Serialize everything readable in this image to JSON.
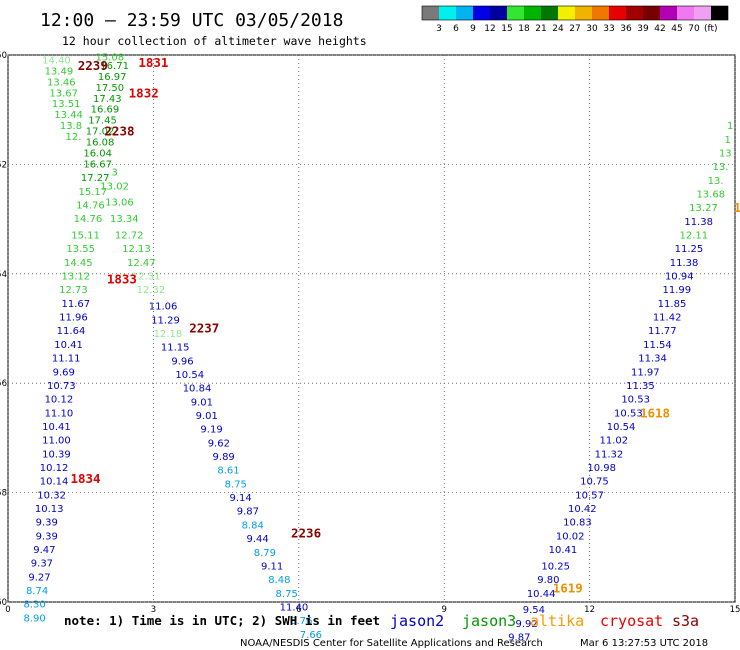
{
  "title": "12:00 – 23:59 UTC 03/05/2018",
  "subtitle": "12 hour collection of altimeter wave heights",
  "units": "(ft)",
  "colorbar": {
    "colors": [
      "#7a7a7a",
      "#00f0f0",
      "#00b4f0",
      "#0000e6",
      "#0000a0",
      "#32e632",
      "#00b400",
      "#007800",
      "#f0f000",
      "#f0b400",
      "#f07800",
      "#e60000",
      "#a00000",
      "#780000",
      "#b400b4",
      "#f078f0",
      "#f0a0f0",
      "#000000"
    ],
    "labels": [
      "3",
      "6",
      "9",
      "12",
      "15",
      "18",
      "21",
      "24",
      "27",
      "30",
      "33",
      "36",
      "39",
      "42",
      "45",
      "70"
    ]
  },
  "note": "note: 1) Time is in UTC; 2) SWH is in feet",
  "legend": [
    {
      "name": "jason2",
      "color": "#0000cc"
    },
    {
      "name": "jason3",
      "color": "#009900"
    },
    {
      "name": "altika",
      "color": "#ff9900"
    },
    {
      "name": "cryosat",
      "color": "#ee0000"
    },
    {
      "name": "s3a",
      "color": "#880000"
    }
  ],
  "footer": {
    "agency": "NOAA/NESDIS Center for Satellite Applications and Research",
    "timestamp": "Mar  6 13:27:53 UTC 2018"
  },
  "chart_data": {
    "type": "scatter",
    "x_ticks": [
      "0",
      "3",
      "6",
      "9",
      "12",
      "15"
    ],
    "y_ticks": [
      "-50",
      "-52",
      "-54",
      "-56",
      "-58",
      "-60"
    ],
    "xlim": [
      0,
      15
    ],
    "ylim": [
      -60,
      -50
    ],
    "grid": true,
    "passes": [
      {
        "label": "2239",
        "x": 1.75,
        "y": -50.2,
        "color": "#8b0000"
      },
      {
        "label": "1831",
        "x": 3.0,
        "y": -50.15,
        "color": "#e00000"
      },
      {
        "label": "1832",
        "x": 2.8,
        "y": -50.7,
        "color": "#e00000"
      },
      {
        "label": "2238",
        "x": 2.3,
        "y": -51.4,
        "color": "#8b0000"
      },
      {
        "label": "1833",
        "x": 2.35,
        "y": -54.1,
        "color": "#e00000"
      },
      {
        "label": "2237",
        "x": 4.05,
        "y": -55.0,
        "color": "#8b0000"
      },
      {
        "label": "1834",
        "x": 1.6,
        "y": -57.75,
        "color": "#e00000"
      },
      {
        "label": "2236",
        "x": 6.15,
        "y": -58.75,
        "color": "#8b0000"
      },
      {
        "label": "1618",
        "x": 13.35,
        "y": -56.55,
        "color": "#f09000"
      },
      {
        "label": "1619",
        "x": 11.55,
        "y": -59.75,
        "color": "#f09000"
      },
      {
        "label": "1",
        "x": 15.05,
        "y": -52.8,
        "color": "#f09000"
      }
    ],
    "points": [
      {
        "x": 1.0,
        "y": -50.1,
        "v": "14.40",
        "c": "#90e890"
      },
      {
        "x": 1.05,
        "y": -50.3,
        "v": "13.49",
        "c": "#32cd32"
      },
      {
        "x": 1.1,
        "y": -50.5,
        "v": "13.46",
        "c": "#32cd32"
      },
      {
        "x": 1.15,
        "y": -50.7,
        "v": "13.67",
        "c": "#32cd32"
      },
      {
        "x": 1.2,
        "y": -50.9,
        "v": "13.51",
        "c": "#32cd32"
      },
      {
        "x": 1.25,
        "y": -51.1,
        "v": "13.44",
        "c": "#32cd32"
      },
      {
        "x": 1.3,
        "y": -51.3,
        "v": "13.8",
        "c": "#32cd32"
      },
      {
        "x": 1.35,
        "y": -51.5,
        "v": "12.",
        "c": "#32cd32"
      },
      {
        "x": 2.1,
        "y": -50.05,
        "v": "15.08",
        "c": "#32cd32"
      },
      {
        "x": 2.2,
        "y": -50.2,
        "v": "16.71",
        "c": "#009900"
      },
      {
        "x": 2.15,
        "y": -50.4,
        "v": "16.97",
        "c": "#009900"
      },
      {
        "x": 2.1,
        "y": -50.6,
        "v": "17.50",
        "c": "#009900"
      },
      {
        "x": 2.05,
        "y": -50.8,
        "v": "17.43",
        "c": "#009900"
      },
      {
        "x": 2.0,
        "y": -51.0,
        "v": "16.69",
        "c": "#009900"
      },
      {
        "x": 1.95,
        "y": -51.2,
        "v": "17.45",
        "c": "#009900"
      },
      {
        "x": 1.9,
        "y": -51.4,
        "v": "17.02",
        "c": "#009900"
      },
      {
        "x": 1.9,
        "y": -51.6,
        "v": "16.08",
        "c": "#009900"
      },
      {
        "x": 1.85,
        "y": -51.8,
        "v": "16.04",
        "c": "#009900"
      },
      {
        "x": 1.85,
        "y": -52.0,
        "v": "16.67",
        "c": "#009900"
      },
      {
        "x": 1.8,
        "y": -52.25,
        "v": "17.27",
        "c": "#009900"
      },
      {
        "x": 1.75,
        "y": -52.5,
        "v": "15.17",
        "c": "#32cd32"
      },
      {
        "x": 1.7,
        "y": -52.75,
        "v": "14.76",
        "c": "#32cd32"
      },
      {
        "x": 1.65,
        "y": -53.0,
        "v": "14.76",
        "c": "#32cd32"
      },
      {
        "x": 1.6,
        "y": -53.3,
        "v": "15.11",
        "c": "#32cd32"
      },
      {
        "x": 1.5,
        "y": -53.55,
        "v": "13.55",
        "c": "#32cd32"
      },
      {
        "x": 1.45,
        "y": -53.8,
        "v": "14.45",
        "c": "#32cd32"
      },
      {
        "x": 1.4,
        "y": -54.05,
        "v": "13.12",
        "c": "#32cd32"
      },
      {
        "x": 1.35,
        "y": -54.3,
        "v": "12.73",
        "c": "#32cd32"
      },
      {
        "x": 2.2,
        "y": -52.15,
        "v": "3",
        "c": "#32cd32"
      },
      {
        "x": 2.2,
        "y": -52.4,
        "v": "13.02",
        "c": "#32cd32"
      },
      {
        "x": 2.3,
        "y": -52.7,
        "v": "13.06",
        "c": "#32cd32"
      },
      {
        "x": 2.4,
        "y": -53.0,
        "v": "13.34",
        "c": "#32cd32"
      },
      {
        "x": 2.5,
        "y": -53.3,
        "v": "12.72",
        "c": "#32cd32"
      },
      {
        "x": 2.65,
        "y": -53.55,
        "v": "12.13",
        "c": "#32cd32"
      },
      {
        "x": 2.75,
        "y": -53.8,
        "v": "12.47",
        "c": "#32cd32"
      },
      {
        "x": 2.85,
        "y": -54.05,
        "v": "12.31",
        "c": "#90e890"
      },
      {
        "x": 2.95,
        "y": -54.3,
        "v": "12.32",
        "c": "#90e890"
      },
      {
        "x": 1.4,
        "y": -54.55,
        "v": "11.67",
        "c": "#0000cc"
      },
      {
        "x": 1.35,
        "y": -54.8,
        "v": "11.96",
        "c": "#0000cc"
      },
      {
        "x": 1.3,
        "y": -55.05,
        "v": "11.64",
        "c": "#0000cc"
      },
      {
        "x": 1.25,
        "y": -55.3,
        "v": "10.41",
        "c": "#0000cc"
      },
      {
        "x": 1.2,
        "y": -55.55,
        "v": "11.11",
        "c": "#0000cc"
      },
      {
        "x": 1.15,
        "y": -55.8,
        "v": "9.69",
        "c": "#0000cc"
      },
      {
        "x": 1.1,
        "y": -56.05,
        "v": "10.73",
        "c": "#0000cc"
      },
      {
        "x": 1.05,
        "y": -56.3,
        "v": "10.12",
        "c": "#0000cc"
      },
      {
        "x": 1.05,
        "y": -56.55,
        "v": "11.10",
        "c": "#0000cc"
      },
      {
        "x": 1.0,
        "y": -56.8,
        "v": "10.41",
        "c": "#0000cc"
      },
      {
        "x": 1.0,
        "y": -57.05,
        "v": "11.00",
        "c": "#0000cc"
      },
      {
        "x": 1.0,
        "y": -57.3,
        "v": "10.39",
        "c": "#0000cc"
      },
      {
        "x": 0.95,
        "y": -57.55,
        "v": "10.12",
        "c": "#0000cc"
      },
      {
        "x": 0.95,
        "y": -57.8,
        "v": "10.14",
        "c": "#0000cc"
      },
      {
        "x": 0.9,
        "y": -58.05,
        "v": "10.32",
        "c": "#0000cc"
      },
      {
        "x": 0.85,
        "y": -58.3,
        "v": "10.13",
        "c": "#0000cc"
      },
      {
        "x": 0.8,
        "y": -58.55,
        "v": "9.39",
        "c": "#0000cc"
      },
      {
        "x": 0.8,
        "y": -58.8,
        "v": "9.39",
        "c": "#0000cc"
      },
      {
        "x": 0.75,
        "y": -59.05,
        "v": "9.47",
        "c": "#0000cc"
      },
      {
        "x": 0.7,
        "y": -59.3,
        "v": "9.37",
        "c": "#0000cc"
      },
      {
        "x": 0.65,
        "y": -59.55,
        "v": "9.27",
        "c": "#0000cc"
      },
      {
        "x": 0.6,
        "y": -59.8,
        "v": "8.74",
        "c": "#00a0e6"
      },
      {
        "x": 0.55,
        "y": -60.05,
        "v": "8.30",
        "c": "#00a0e6"
      },
      {
        "x": 0.55,
        "y": -60.3,
        "v": "8.90",
        "c": "#00a0e6"
      },
      {
        "x": 3.2,
        "y": -54.6,
        "v": "11.06",
        "c": "#0000cc"
      },
      {
        "x": 3.25,
        "y": -54.85,
        "v": "11.29",
        "c": "#0000cc"
      },
      {
        "x": 3.3,
        "y": -55.1,
        "v": "12.18",
        "c": "#90e890"
      },
      {
        "x": 3.45,
        "y": -55.35,
        "v": "11.15",
        "c": "#0000cc"
      },
      {
        "x": 3.6,
        "y": -55.6,
        "v": "9.96",
        "c": "#0000cc"
      },
      {
        "x": 3.75,
        "y": -55.85,
        "v": "10.54",
        "c": "#0000cc"
      },
      {
        "x": 3.9,
        "y": -56.1,
        "v": "10.84",
        "c": "#0000cc"
      },
      {
        "x": 4.0,
        "y": -56.35,
        "v": "9.01",
        "c": "#0000cc"
      },
      {
        "x": 4.1,
        "y": -56.6,
        "v": "9.01",
        "c": "#0000cc"
      },
      {
        "x": 4.2,
        "y": -56.85,
        "v": "9.19",
        "c": "#0000cc"
      },
      {
        "x": 4.35,
        "y": -57.1,
        "v": "9.62",
        "c": "#0000cc"
      },
      {
        "x": 4.45,
        "y": -57.35,
        "v": "9.89",
        "c": "#0000cc"
      },
      {
        "x": 4.55,
        "y": -57.6,
        "v": "8.61",
        "c": "#00a0e6"
      },
      {
        "x": 4.7,
        "y": -57.85,
        "v": "8.75",
        "c": "#00a0e6"
      },
      {
        "x": 4.8,
        "y": -58.1,
        "v": "9.14",
        "c": "#0000cc"
      },
      {
        "x": 4.95,
        "y": -58.35,
        "v": "9.87",
        "c": "#0000cc"
      },
      {
        "x": 5.05,
        "y": -58.6,
        "v": "8.84",
        "c": "#00a0e6"
      },
      {
        "x": 5.15,
        "y": -58.85,
        "v": "9.44",
        "c": "#0000cc"
      },
      {
        "x": 5.3,
        "y": -59.1,
        "v": "8.79",
        "c": "#00a0e6"
      },
      {
        "x": 5.45,
        "y": -59.35,
        "v": "9.11",
        "c": "#0000cc"
      },
      {
        "x": 5.6,
        "y": -59.6,
        "v": "8.48",
        "c": "#00a0e6"
      },
      {
        "x": 5.75,
        "y": -59.85,
        "v": "8.75",
        "c": "#00a0e6"
      },
      {
        "x": 5.9,
        "y": -60.1,
        "v": "11.40",
        "c": "#0000cc"
      },
      {
        "x": 6.05,
        "y": -60.35,
        "v": "8.76",
        "c": "#00a0e6"
      },
      {
        "x": 6.25,
        "y": -60.6,
        "v": "7.66",
        "c": "#00a0e6"
      },
      {
        "x": 10.55,
        "y": -60.65,
        "v": "9.87",
        "c": "#0000cc"
      },
      {
        "x": 10.7,
        "y": -60.4,
        "v": "9.92",
        "c": "#0000cc"
      },
      {
        "x": 10.85,
        "y": -60.15,
        "v": "9.54",
        "c": "#0000cc"
      },
      {
        "x": 11.0,
        "y": -59.85,
        "v": "10.44",
        "c": "#0000cc"
      },
      {
        "x": 11.15,
        "y": -59.6,
        "v": "9.80",
        "c": "#0000cc"
      },
      {
        "x": 11.3,
        "y": -59.35,
        "v": "10.25",
        "c": "#0000cc"
      },
      {
        "x": 11.45,
        "y": -59.05,
        "v": "10.41",
        "c": "#0000cc"
      },
      {
        "x": 11.6,
        "y": -58.8,
        "v": "10.02",
        "c": "#0000cc"
      },
      {
        "x": 11.75,
        "y": -58.55,
        "v": "10.83",
        "c": "#0000cc"
      },
      {
        "x": 11.85,
        "y": -58.3,
        "v": "10.42",
        "c": "#0000cc"
      },
      {
        "x": 12.0,
        "y": -58.05,
        "v": "10.57",
        "c": "#0000cc"
      },
      {
        "x": 12.1,
        "y": -57.8,
        "v": "10.75",
        "c": "#0000cc"
      },
      {
        "x": 12.25,
        "y": -57.55,
        "v": "10.98",
        "c": "#0000cc"
      },
      {
        "x": 12.4,
        "y": -57.3,
        "v": "11.32",
        "c": "#0000cc"
      },
      {
        "x": 12.5,
        "y": -57.05,
        "v": "11.02",
        "c": "#0000cc"
      },
      {
        "x": 12.65,
        "y": -56.8,
        "v": "10.54",
        "c": "#0000cc"
      },
      {
        "x": 12.8,
        "y": -56.55,
        "v": "10.53",
        "c": "#0000cc"
      },
      {
        "x": 12.95,
        "y": -56.3,
        "v": "10.53",
        "c": "#0000cc"
      },
      {
        "x": 13.05,
        "y": -56.05,
        "v": "11.35",
        "c": "#0000cc"
      },
      {
        "x": 13.15,
        "y": -55.8,
        "v": "11.97",
        "c": "#0000cc"
      },
      {
        "x": 13.3,
        "y": -55.55,
        "v": "11.34",
        "c": "#0000cc"
      },
      {
        "x": 13.4,
        "y": -55.3,
        "v": "11.54",
        "c": "#0000cc"
      },
      {
        "x": 13.5,
        "y": -55.05,
        "v": "11.77",
        "c": "#0000cc"
      },
      {
        "x": 13.6,
        "y": -54.8,
        "v": "11.42",
        "c": "#0000cc"
      },
      {
        "x": 13.7,
        "y": -54.55,
        "v": "11.85",
        "c": "#0000cc"
      },
      {
        "x": 13.8,
        "y": -54.3,
        "v": "11.99",
        "c": "#0000cc"
      },
      {
        "x": 13.85,
        "y": -54.05,
        "v": "10.94",
        "c": "#0000cc"
      },
      {
        "x": 13.95,
        "y": -53.8,
        "v": "11.38",
        "c": "#0000cc"
      },
      {
        "x": 14.05,
        "y": -53.55,
        "v": "11.25",
        "c": "#0000cc"
      },
      {
        "x": 14.15,
        "y": -53.3,
        "v": "12.11",
        "c": "#32cd32"
      },
      {
        "x": 14.25,
        "y": -53.05,
        "v": "11.38",
        "c": "#0000cc"
      },
      {
        "x": 14.35,
        "y": -52.8,
        "v": "13.27",
        "c": "#32cd32"
      },
      {
        "x": 14.5,
        "y": -52.55,
        "v": "13.68",
        "c": "#32cd32"
      },
      {
        "x": 14.6,
        "y": -52.3,
        "v": "13.",
        "c": "#32cd32"
      },
      {
        "x": 14.7,
        "y": -52.05,
        "v": "13.",
        "c": "#32cd32"
      },
      {
        "x": 14.8,
        "y": -51.8,
        "v": "13",
        "c": "#32cd32"
      },
      {
        "x": 14.85,
        "y": -51.55,
        "v": "1",
        "c": "#32cd32"
      },
      {
        "x": 14.9,
        "y": -51.3,
        "v": "1",
        "c": "#32cd32"
      }
    ]
  }
}
